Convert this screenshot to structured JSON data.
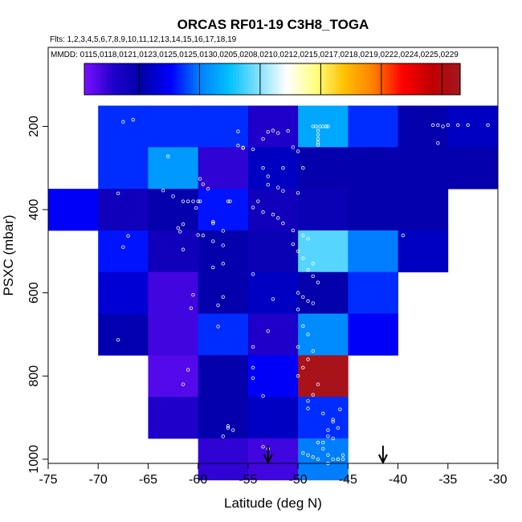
{
  "chart_data": {
    "type": "heatmap",
    "title": "ORCAS RF01-19 C3H8_TOGA",
    "subtitle_flights": "Flts: 1,2,3,4,5,6,7,8,9,10,11,12,13,14,15,16,17,18,19",
    "subtitle_dates": "MMDD: 0115,0118,0121,0123,0125,0125,0130,0205,0208,0210,0212,0215,0217,0218,0219,0222,0224,0225,0229",
    "xlabel": "Latitude (deg N)",
    "ylabel": "PSXC (mbar)",
    "xlim": [
      -75,
      -30
    ],
    "ylim": [
      1010,
      10
    ],
    "y_reversed": true,
    "x_ticks": [
      -75,
      -70,
      -65,
      -60,
      -55,
      -50,
      -45,
      -40,
      -35,
      -30
    ],
    "y_ticks": [
      200,
      400,
      600,
      800,
      1000
    ],
    "colorbar": {
      "range": [
        11,
        73
      ],
      "ticks": [
        20,
        30,
        40,
        50,
        60,
        70
      ],
      "colors": [
        "#7a10ff",
        "#2000cc",
        "#0000a8",
        "#0000ff",
        "#0080ff",
        "#00c0ff",
        "#80e0ff",
        "#ffffff",
        "#ffff80",
        "#ffc000",
        "#ff8000",
        "#ff0000",
        "#c00000",
        "#a01820"
      ]
    },
    "cells": [
      {
        "lat": -67.5,
        "p": 200,
        "v": 27
      },
      {
        "lat": -62.5,
        "p": 200,
        "v": 27
      },
      {
        "lat": -57.5,
        "p": 200,
        "v": 27
      },
      {
        "lat": -52.5,
        "p": 200,
        "v": 16
      },
      {
        "lat": -47.5,
        "p": 200,
        "v": 33
      },
      {
        "lat": -42.5,
        "p": 200,
        "v": 27
      },
      {
        "lat": -37.5,
        "p": 200,
        "v": 20
      },
      {
        "lat": -32.5,
        "p": 200,
        "v": 22
      },
      {
        "lat": -67.5,
        "p": 300,
        "v": 27
      },
      {
        "lat": -62.5,
        "p": 300,
        "v": 32
      },
      {
        "lat": -57.5,
        "p": 300,
        "v": 15
      },
      {
        "lat": -52.5,
        "p": 300,
        "v": 22
      },
      {
        "lat": -47.5,
        "p": 300,
        "v": 20
      },
      {
        "lat": -42.5,
        "p": 300,
        "v": 20
      },
      {
        "lat": -37.5,
        "p": 300,
        "v": 20
      },
      {
        "lat": -32.5,
        "p": 300,
        "v": 20
      },
      {
        "lat": -72.5,
        "p": 400,
        "v": 25
      },
      {
        "lat": -67.5,
        "p": 400,
        "v": 18
      },
      {
        "lat": -62.5,
        "p": 400,
        "v": 20
      },
      {
        "lat": -57.5,
        "p": 400,
        "v": 26
      },
      {
        "lat": -52.5,
        "p": 400,
        "v": 18
      },
      {
        "lat": -47.5,
        "p": 400,
        "v": 19
      },
      {
        "lat": -42.5,
        "p": 400,
        "v": 20
      },
      {
        "lat": -37.5,
        "p": 400,
        "v": 20
      },
      {
        "lat": -67.5,
        "p": 500,
        "v": 26
      },
      {
        "lat": -62.5,
        "p": 500,
        "v": 18
      },
      {
        "lat": -57.5,
        "p": 500,
        "v": 20
      },
      {
        "lat": -52.5,
        "p": 500,
        "v": 19
      },
      {
        "lat": -47.5,
        "p": 500,
        "v": 38
      },
      {
        "lat": -42.5,
        "p": 500,
        "v": 30
      },
      {
        "lat": -37.5,
        "p": 500,
        "v": 22
      },
      {
        "lat": -67.5,
        "p": 600,
        "v": 23
      },
      {
        "lat": -62.5,
        "p": 600,
        "v": 14
      },
      {
        "lat": -57.5,
        "p": 600,
        "v": 20
      },
      {
        "lat": -52.5,
        "p": 600,
        "v": 22
      },
      {
        "lat": -47.5,
        "p": 600,
        "v": 20
      },
      {
        "lat": -42.5,
        "p": 600,
        "v": 27
      },
      {
        "lat": -67.5,
        "p": 700,
        "v": 21
      },
      {
        "lat": -62.5,
        "p": 700,
        "v": 14
      },
      {
        "lat": -57.5,
        "p": 700,
        "v": 27
      },
      {
        "lat": -52.5,
        "p": 700,
        "v": 16
      },
      {
        "lat": -47.5,
        "p": 700,
        "v": 31
      },
      {
        "lat": -42.5,
        "p": 700,
        "v": 25
      },
      {
        "lat": -62.5,
        "p": 800,
        "v": 13
      },
      {
        "lat": -57.5,
        "p": 800,
        "v": 20
      },
      {
        "lat": -52.5,
        "p": 800,
        "v": 25
      },
      {
        "lat": -47.5,
        "p": 800,
        "v": 72
      },
      {
        "lat": -62.5,
        "p": 900,
        "v": 16
      },
      {
        "lat": -57.5,
        "p": 900,
        "v": 20
      },
      {
        "lat": -52.5,
        "p": 900,
        "v": 22
      },
      {
        "lat": -47.5,
        "p": 900,
        "v": 27
      },
      {
        "lat": -57.5,
        "p": 1000,
        "v": 15
      },
      {
        "lat": -52.5,
        "p": 1000,
        "v": 14
      },
      {
        "lat": -47.5,
        "p": 1000,
        "v": 30
      }
    ],
    "arrows_lat": [
      -53,
      -41.5
    ],
    "samples": [
      [
        -73,
        318
      ],
      [
        -68,
        361
      ],
      [
        -67,
        463
      ],
      [
        -67.5,
        490
      ],
      [
        -68,
        713
      ],
      [
        -67.5,
        189
      ],
      [
        -66.5,
        184
      ],
      [
        -63,
        272
      ],
      [
        -63.5,
        354
      ],
      [
        -62.5,
        368
      ],
      [
        -61.5,
        380
      ],
      [
        -61,
        380
      ],
      [
        -60.5,
        380
      ],
      [
        -60,
        380
      ],
      [
        -59.8,
        380
      ],
      [
        -60.2,
        396
      ],
      [
        -61.5,
        435
      ],
      [
        -61.8,
        453
      ],
      [
        -62,
        444
      ],
      [
        -61.5,
        496
      ],
      [
        -60.5,
        605
      ],
      [
        -60.7,
        637
      ],
      [
        -59.8,
        326
      ],
      [
        -59.5,
        339
      ],
      [
        -59,
        350
      ],
      [
        -60,
        461
      ],
      [
        -59.5,
        462
      ],
      [
        -58.5,
        476
      ],
      [
        -57.5,
        486
      ],
      [
        -58.5,
        429
      ],
      [
        -58.5,
        433
      ],
      [
        -57.5,
        451
      ],
      [
        -58.5,
        539
      ],
      [
        -57.5,
        530
      ],
      [
        -57.5,
        610
      ],
      [
        -58,
        630
      ],
      [
        -58,
        681
      ],
      [
        -57,
        380
      ],
      [
        -56.8,
        380
      ],
      [
        -56,
        212
      ],
      [
        -55.5,
        252
      ],
      [
        -56,
        246
      ],
      [
        -55.5,
        251
      ],
      [
        -54.5,
        255
      ],
      [
        -53.5,
        230
      ],
      [
        -53,
        213
      ],
      [
        -52.5,
        210
      ],
      [
        -52,
        216
      ],
      [
        -51,
        211
      ],
      [
        -50.5,
        250
      ],
      [
        -50,
        260
      ],
      [
        -49.5,
        300
      ],
      [
        -51.5,
        300
      ],
      [
        -53.5,
        300
      ],
      [
        -53,
        320
      ],
      [
        -53,
        340
      ],
      [
        -52,
        347
      ],
      [
        -51.5,
        355
      ],
      [
        -50,
        360
      ],
      [
        -54,
        380
      ],
      [
        -54.5,
        395
      ],
      [
        -53.5,
        406
      ],
      [
        -52.5,
        412
      ],
      [
        -52,
        420
      ],
      [
        -51.5,
        433
      ],
      [
        -50.5,
        450
      ],
      [
        -49.5,
        462
      ],
      [
        -49,
        470
      ],
      [
        -50.5,
        483
      ],
      [
        -50,
        500
      ],
      [
        -49.5,
        517
      ],
      [
        -48.5,
        530
      ],
      [
        -49,
        545
      ],
      [
        -48.5,
        560
      ],
      [
        -48,
        575
      ],
      [
        -50,
        600
      ],
      [
        -49.5,
        610
      ],
      [
        -49,
        620
      ],
      [
        -48.5,
        625
      ],
      [
        -50,
        640
      ],
      [
        -49.5,
        680
      ],
      [
        -49,
        700
      ],
      [
        -50,
        730
      ],
      [
        -48.5,
        740
      ],
      [
        -49,
        760
      ],
      [
        -49.5,
        780
      ],
      [
        -50,
        800
      ],
      [
        -48,
        820
      ],
      [
        -48.5,
        845
      ],
      [
        -49,
        860
      ],
      [
        -49,
        878
      ],
      [
        -47.5,
        890
      ],
      [
        -46.5,
        910
      ],
      [
        -47,
        930
      ],
      [
        -46.5,
        950
      ],
      [
        -48,
        960
      ],
      [
        -47.5,
        975
      ],
      [
        -47,
        990
      ],
      [
        -46.5,
        1000
      ],
      [
        -46,
        1000
      ],
      [
        -45.5,
        1000
      ],
      [
        -47,
        1010
      ],
      [
        -48,
        1000
      ],
      [
        -48.5,
        995
      ],
      [
        -49,
        990
      ],
      [
        -49.5,
        985
      ],
      [
        -47.5,
        960
      ],
      [
        -47,
        945
      ],
      [
        -46,
        925
      ],
      [
        -46.5,
        905
      ],
      [
        -45.8,
        880
      ],
      [
        -46,
        1000
      ],
      [
        -45.5,
        990
      ],
      [
        -53.5,
        970
      ],
      [
        -53,
        975
      ],
      [
        -57.5,
        945
      ],
      [
        -57,
        920
      ],
      [
        -57,
        925
      ],
      [
        -56.5,
        930
      ],
      [
        -61,
        785
      ],
      [
        -61.5,
        820
      ],
      [
        -53.5,
        848
      ],
      [
        -54.5,
        780
      ],
      [
        -54.5,
        805
      ],
      [
        -54.5,
        730
      ],
      [
        -53,
        692
      ],
      [
        -52.5,
        615
      ],
      [
        -54.5,
        555
      ],
      [
        -48,
        210
      ],
      [
        -48,
        230
      ],
      [
        -48,
        245
      ],
      [
        -48.5,
        200
      ],
      [
        -48.2,
        200
      ],
      [
        -47.8,
        200
      ],
      [
        -47.5,
        200
      ],
      [
        -47.2,
        200
      ],
      [
        -47,
        200
      ],
      [
        -36.5,
        197
      ],
      [
        -36,
        197
      ],
      [
        -35.5,
        200
      ],
      [
        -35,
        197
      ],
      [
        -34,
        197
      ],
      [
        -33,
        197
      ],
      [
        -31,
        197
      ],
      [
        -36,
        240
      ],
      [
        -39.5,
        462
      ],
      [
        -48,
        220
      ],
      [
        -48,
        238
      ]
    ]
  }
}
